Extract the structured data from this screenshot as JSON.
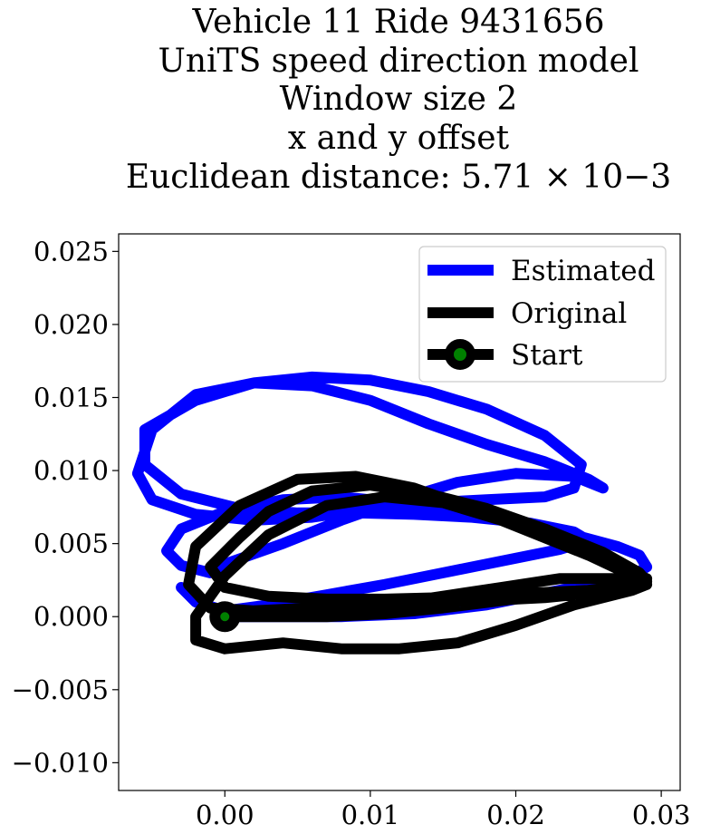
{
  "chart_data": {
    "type": "line",
    "title_lines": [
      "Vehicle 11 Ride 9431656",
      "UniTS speed direction model",
      "Window size 2",
      "x and y offset",
      "Euclidean distance: 5.71 × 10−3"
    ],
    "xlabel": "",
    "ylabel": "",
    "xlim": [
      -0.0073,
      0.0313
    ],
    "ylim": [
      -0.0119,
      0.0262
    ],
    "xticks": [
      0.0,
      0.01,
      0.02,
      0.03
    ],
    "xtick_labels": [
      "0.00",
      "0.01",
      "0.02",
      "0.03"
    ],
    "yticks": [
      -0.01,
      -0.005,
      0.0,
      0.005,
      0.01,
      0.015,
      0.02,
      0.025
    ],
    "ytick_labels": [
      "−0.010",
      "−0.005",
      "0.000",
      "0.005",
      "0.010",
      "0.015",
      "0.020",
      "0.025"
    ],
    "grid": false,
    "legend_position": "top-right",
    "legend": [
      "Estimated",
      "Original",
      "Start"
    ],
    "series": [
      {
        "name": "Estimated",
        "color": "#0000ff",
        "x": [
          0.0,
          0.003,
          0.008,
          0.013,
          0.018,
          0.022,
          0.026,
          0.028,
          0.029,
          0.0285,
          0.027,
          0.024,
          0.02,
          0.016,
          0.012,
          0.008,
          0.004,
          0.0,
          -0.003,
          -0.004,
          -0.003,
          -0.001,
          0.0,
          0.004,
          0.008,
          0.012,
          0.016,
          0.02,
          0.024,
          0.026,
          0.025,
          0.022,
          0.018,
          0.014,
          0.01,
          0.006,
          0.002,
          -0.002,
          -0.005,
          -0.006,
          -0.005,
          -0.002,
          0.002,
          0.006,
          0.01,
          0.014,
          0.018,
          0.022,
          0.024,
          0.0245,
          0.022,
          0.018,
          0.014,
          0.01,
          0.006,
          0.002,
          -0.002,
          -0.0055,
          -0.0055,
          -0.003,
          0.001,
          0.005,
          0.009,
          0.013,
          0.017,
          0.021,
          0.024,
          0.025,
          0.023,
          0.019,
          0.015,
          0.011,
          0.007,
          0.003,
          0.0,
          -0.002,
          -0.003
        ],
        "y": [
          0.0,
          0.0,
          0.0,
          0.0002,
          0.0008,
          0.0016,
          0.0024,
          0.0028,
          0.0034,
          0.0042,
          0.0048,
          0.0056,
          0.0064,
          0.0072,
          0.0078,
          0.0082,
          0.008,
          0.0072,
          0.006,
          0.0045,
          0.0035,
          0.003,
          0.0036,
          0.005,
          0.0066,
          0.008,
          0.0092,
          0.0098,
          0.0096,
          0.0088,
          0.0094,
          0.0106,
          0.0118,
          0.0132,
          0.0148,
          0.0158,
          0.016,
          0.0152,
          0.0128,
          0.0098,
          0.008,
          0.007,
          0.0066,
          0.0068,
          0.0074,
          0.0078,
          0.008,
          0.0082,
          0.0088,
          0.0104,
          0.0124,
          0.0142,
          0.0154,
          0.0162,
          0.0164,
          0.016,
          0.0148,
          0.0128,
          0.0104,
          0.0084,
          0.0074,
          0.0071,
          0.0071,
          0.007,
          0.0068,
          0.0064,
          0.0058,
          0.0052,
          0.0046,
          0.0038,
          0.003,
          0.0022,
          0.0015,
          0.0008,
          0.0004,
          0.001,
          0.002
        ]
      },
      {
        "name": "Original",
        "color": "#000000",
        "x": [
          0.0,
          0.003,
          0.007,
          0.011,
          0.015,
          0.019,
          0.023,
          0.027,
          0.029,
          0.0285,
          0.026,
          0.022,
          0.018,
          0.014,
          0.01,
          0.006,
          0.003,
          0.001,
          -0.001,
          0.0,
          0.003,
          0.007,
          0.011,
          0.015,
          0.019,
          0.023,
          0.027,
          0.029,
          0.028,
          0.025,
          0.021,
          0.017,
          0.013,
          0.009,
          0.005,
          0.001,
          -0.002,
          -0.0025,
          -0.001,
          0.002,
          0.006,
          0.01,
          0.014,
          0.018,
          0.022,
          0.026,
          0.028,
          0.029,
          0.027,
          0.023,
          0.019,
          0.015,
          0.011,
          0.007,
          0.003,
          0.0,
          -0.002,
          -0.002,
          0.0,
          0.004,
          0.008,
          0.012,
          0.016,
          0.02,
          0.024,
          0.028,
          0.029,
          0.027,
          0.023,
          0.019,
          0.015,
          0.011,
          0.007,
          0.003,
          0.0
        ],
        "y": [
          0.0,
          0.0,
          0.0,
          0.0002,
          0.0006,
          0.0011,
          0.0016,
          0.002,
          0.0024,
          0.003,
          0.0044,
          0.006,
          0.0074,
          0.0084,
          0.009,
          0.0086,
          0.0072,
          0.0054,
          0.0034,
          0.002,
          0.0014,
          0.0012,
          0.0012,
          0.0013,
          0.0015,
          0.0017,
          0.0019,
          0.0022,
          0.0028,
          0.0042,
          0.0058,
          0.0074,
          0.0088,
          0.0096,
          0.0094,
          0.0076,
          0.0048,
          0.0022,
          0.0006,
          0.0004,
          0.0006,
          0.0008,
          0.0009,
          0.0011,
          0.0013,
          0.0017,
          0.0022,
          0.0026,
          0.0034,
          0.005,
          0.0066,
          0.0078,
          0.0082,
          0.0076,
          0.0056,
          0.0028,
          0.0,
          -0.0016,
          -0.0022,
          -0.0018,
          -0.0022,
          -0.0022,
          -0.0018,
          -0.0006,
          0.0008,
          0.0018,
          0.0022,
          0.0026,
          0.0026,
          0.002,
          0.0014,
          0.0008,
          0.0004,
          0.0002,
          0.0
        ]
      }
    ],
    "start": {
      "x": 0.0,
      "y": 0.0,
      "marker_color": "#008000",
      "edge_color": "#000000"
    }
  }
}
